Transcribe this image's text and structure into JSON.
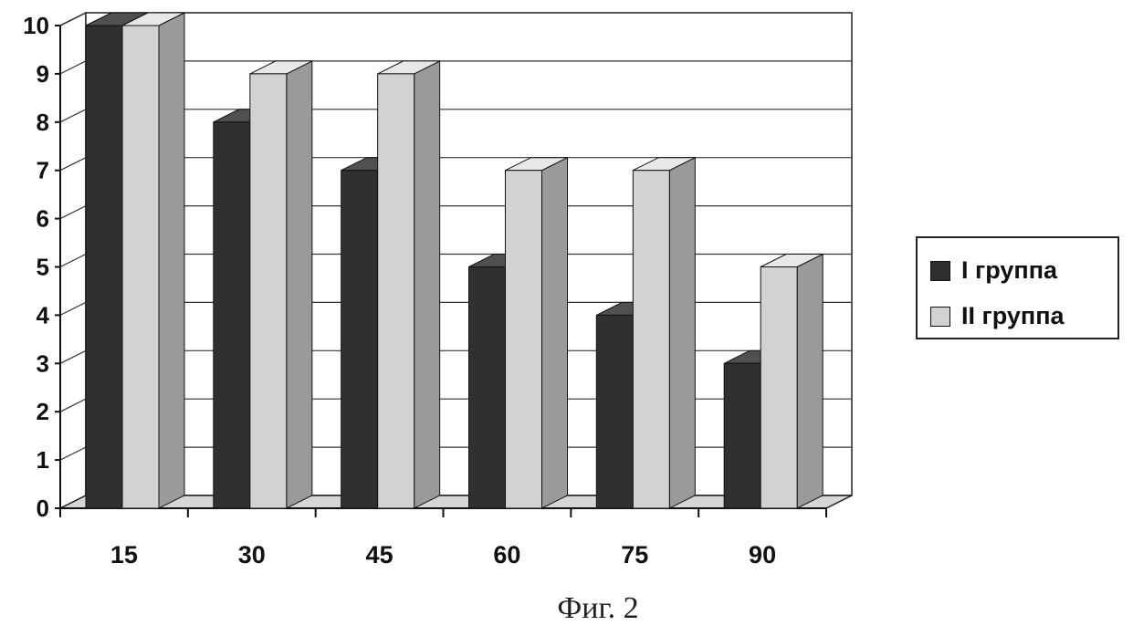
{
  "chart_data": {
    "type": "bar",
    "categories": [
      "15",
      "30",
      "45",
      "60",
      "75",
      "90"
    ],
    "series": [
      {
        "name": "I группа",
        "values": [
          10,
          8,
          7,
          5,
          4,
          3
        ]
      },
      {
        "name": "II группа",
        "values": [
          10,
          9,
          9,
          7,
          7,
          5
        ]
      }
    ],
    "ylim": [
      0,
      10
    ],
    "yticks": [
      "0",
      "1",
      "2",
      "3",
      "4",
      "5",
      "6",
      "7",
      "8",
      "9",
      "10"
    ],
    "grid": true,
    "legend_position": "right",
    "colors": {
      "series_1": "#303030",
      "series_2": "#d2d2d2"
    }
  },
  "legend": {
    "items": [
      "I группа",
      "II группа"
    ]
  },
  "caption": "Фиг. 2"
}
